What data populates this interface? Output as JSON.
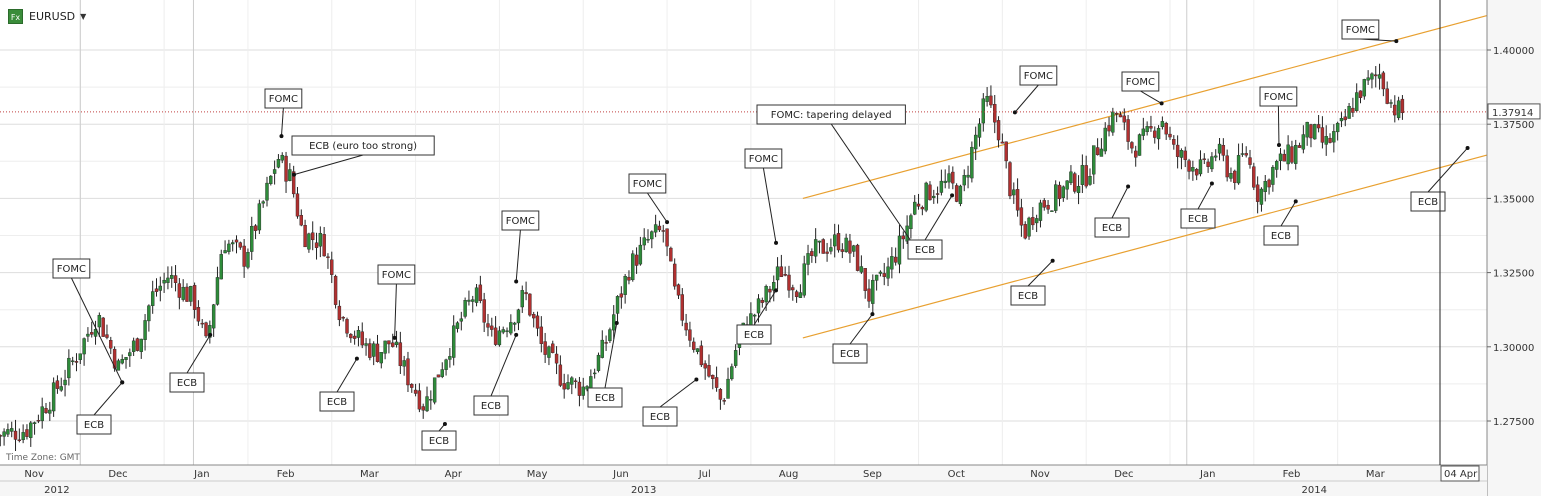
{
  "header": {
    "symbol": "EURUSD",
    "fx_badge": "Fx"
  },
  "timezone": "Time Zone: GMT",
  "current_price": "1.37914",
  "crosshair_date": "04 Apr",
  "colors": {
    "bull": "#2e8b3a",
    "bear": "#b03030",
    "wick": "#222222",
    "channel": "#e8a030",
    "grid": "#dddddd",
    "price_line": "#c04040"
  },
  "chart_data": {
    "type": "candlestick",
    "title": "",
    "xlabel": "",
    "ylabel": "",
    "ylim": [
      1.26,
      1.42
    ],
    "grid": true,
    "y_ticks": [
      "1.27500",
      "1.30000",
      "1.32500",
      "1.35000",
      "1.37500",
      "1.40000"
    ],
    "month_labels": [
      {
        "label": "Nov",
        "t": 0.05
      },
      {
        "label": "Dec",
        "t": 1.05
      },
      {
        "label": "Jan",
        "t": 2.05
      },
      {
        "label": "Feb",
        "t": 3.05
      },
      {
        "label": "Mar",
        "t": 4.05
      },
      {
        "label": "Apr",
        "t": 5.05
      },
      {
        "label": "May",
        "t": 6.05
      },
      {
        "label": "Jun",
        "t": 7.05
      },
      {
        "label": "Jul",
        "t": 8.05
      },
      {
        "label": "Aug",
        "t": 9.05
      },
      {
        "label": "Sep",
        "t": 10.05
      },
      {
        "label": "Oct",
        "t": 11.05
      },
      {
        "label": "Nov",
        "t": 12.05
      },
      {
        "label": "Dec",
        "t": 13.05
      },
      {
        "label": "Jan",
        "t": 14.05
      },
      {
        "label": "Feb",
        "t": 15.05
      },
      {
        "label": "Mar",
        "t": 16.05
      }
    ],
    "year_labels": [
      {
        "label": "2012",
        "t": 0.5
      },
      {
        "label": "2013",
        "t": 7.5
      },
      {
        "label": "2014",
        "t": 15.5
      }
    ],
    "price_path": [
      [
        -0.4,
        1.27
      ],
      [
        0.0,
        1.272
      ],
      [
        0.3,
        1.283
      ],
      [
        0.6,
        1.297
      ],
      [
        0.85,
        1.311
      ],
      [
        1.1,
        1.293
      ],
      [
        1.35,
        1.303
      ],
      [
        1.5,
        1.317
      ],
      [
        1.7,
        1.324
      ],
      [
        1.9,
        1.318
      ],
      [
        2.0,
        1.316
      ],
      [
        2.15,
        1.3
      ],
      [
        2.35,
        1.336
      ],
      [
        2.6,
        1.33
      ],
      [
        2.8,
        1.346
      ],
      [
        3.0,
        1.364
      ],
      [
        3.15,
        1.357
      ],
      [
        3.3,
        1.338
      ],
      [
        3.55,
        1.335
      ],
      [
        3.75,
        1.311
      ],
      [
        4.0,
        1.301
      ],
      [
        4.2,
        1.298
      ],
      [
        4.35,
        1.302
      ],
      [
        4.55,
        1.29
      ],
      [
        4.75,
        1.28
      ],
      [
        5.0,
        1.297
      ],
      [
        5.2,
        1.31
      ],
      [
        5.35,
        1.318
      ],
      [
        5.55,
        1.303
      ],
      [
        5.8,
        1.31
      ],
      [
        5.95,
        1.318
      ],
      [
        6.15,
        1.3
      ],
      [
        6.4,
        1.289
      ],
      [
        6.65,
        1.286
      ],
      [
        6.9,
        1.3
      ],
      [
        7.0,
        1.31
      ],
      [
        7.2,
        1.327
      ],
      [
        7.45,
        1.337
      ],
      [
        7.6,
        1.339
      ],
      [
        7.75,
        1.316
      ],
      [
        7.95,
        1.302
      ],
      [
        8.15,
        1.29
      ],
      [
        8.3,
        1.281
      ],
      [
        8.5,
        1.303
      ],
      [
        8.8,
        1.316
      ],
      [
        9.0,
        1.326
      ],
      [
        9.2,
        1.32
      ],
      [
        9.4,
        1.332
      ],
      [
        9.7,
        1.336
      ],
      [
        9.9,
        1.33
      ],
      [
        10.05,
        1.317
      ],
      [
        10.25,
        1.324
      ],
      [
        10.45,
        1.336
      ],
      [
        10.6,
        1.348
      ],
      [
        10.8,
        1.353
      ],
      [
        11.0,
        1.355
      ],
      [
        11.15,
        1.351
      ],
      [
        11.3,
        1.368
      ],
      [
        11.45,
        1.383
      ],
      [
        11.6,
        1.373
      ],
      [
        11.75,
        1.352
      ],
      [
        11.9,
        1.338
      ],
      [
        12.05,
        1.347
      ],
      [
        12.25,
        1.35
      ],
      [
        12.45,
        1.355
      ],
      [
        12.65,
        1.358
      ],
      [
        12.85,
        1.372
      ],
      [
        13.0,
        1.379
      ],
      [
        13.2,
        1.367
      ],
      [
        13.35,
        1.37
      ],
      [
        13.55,
        1.377
      ],
      [
        13.7,
        1.365
      ],
      [
        13.9,
        1.362
      ],
      [
        14.05,
        1.359
      ],
      [
        14.2,
        1.366
      ],
      [
        14.4,
        1.357
      ],
      [
        14.55,
        1.366
      ],
      [
        14.7,
        1.351
      ],
      [
        14.9,
        1.361
      ],
      [
        15.1,
        1.365
      ],
      [
        15.3,
        1.373
      ],
      [
        15.5,
        1.368
      ],
      [
        15.7,
        1.374
      ],
      [
        15.9,
        1.386
      ],
      [
        16.15,
        1.392
      ],
      [
        16.3,
        1.381
      ],
      [
        16.4,
        1.379
      ]
    ],
    "channel_lines": [
      {
        "from": [
          9.22,
          1.35
        ],
        "to": [
          17.7,
          1.414
        ]
      },
      {
        "from": [
          9.22,
          1.303
        ],
        "to": [
          17.7,
          1.367
        ]
      }
    ],
    "annotations": [
      {
        "label": "FOMC",
        "t": 3.0,
        "price": 1.371,
        "box": [
          265,
          89
        ]
      },
      {
        "label": "ECB (euro too strong)",
        "t": 3.15,
        "price": 1.358,
        "box": [
          292,
          136
        ]
      },
      {
        "label": "FOMC",
        "t": 1.1,
        "price": 1.288,
        "box": [
          53,
          259
        ]
      },
      {
        "label": "ECB",
        "t": 1.1,
        "price": 1.288,
        "box": [
          77,
          415
        ]
      },
      {
        "label": "FOMC",
        "t": 4.35,
        "price": 1.303,
        "box": [
          378,
          265
        ]
      },
      {
        "label": "ECB",
        "t": 2.15,
        "price": 1.304,
        "box": [
          170,
          373
        ]
      },
      {
        "label": "ECB",
        "t": 3.9,
        "price": 1.296,
        "box": [
          320,
          392
        ]
      },
      {
        "label": "ECB",
        "t": 4.95,
        "price": 1.274,
        "box": [
          422,
          431
        ]
      },
      {
        "label": "FOMC",
        "t": 5.8,
        "price": 1.322,
        "box": [
          502,
          211
        ]
      },
      {
        "label": "ECB",
        "t": 5.8,
        "price": 1.304,
        "box": [
          474,
          396
        ]
      },
      {
        "label": "ECB",
        "t": 7.0,
        "price": 1.308,
        "box": [
          588,
          388
        ]
      },
      {
        "label": "FOMC",
        "t": 7.6,
        "price": 1.342,
        "box": [
          629,
          174
        ]
      },
      {
        "label": "ECB",
        "t": 7.95,
        "price": 1.289,
        "box": [
          643,
          407
        ]
      },
      {
        "label": "FOMC",
        "t": 8.9,
        "price": 1.335,
        "box": [
          745,
          149
        ]
      },
      {
        "label": "ECB",
        "t": 8.9,
        "price": 1.319,
        "box": [
          737,
          325
        ]
      },
      {
        "label": "FOMC: tapering delayed",
        "t": 10.55,
        "price": 1.334,
        "box": [
          757,
          105
        ]
      },
      {
        "label": "ECB",
        "t": 10.05,
        "price": 1.311,
        "box": [
          833,
          344
        ]
      },
      {
        "label": "ECB",
        "t": 11.0,
        "price": 1.351,
        "box": [
          908,
          240
        ]
      },
      {
        "label": "FOMC",
        "t": 11.75,
        "price": 1.379,
        "box": [
          1020,
          66
        ]
      },
      {
        "label": "ECB",
        "t": 12.2,
        "price": 1.329,
        "box": [
          1011,
          286
        ]
      },
      {
        "label": "ECB",
        "t": 13.1,
        "price": 1.354,
        "box": [
          1095,
          218
        ]
      },
      {
        "label": "FOMC",
        "t": 13.5,
        "price": 1.382,
        "box": [
          1122,
          72
        ]
      },
      {
        "label": "ECB",
        "t": 14.1,
        "price": 1.355,
        "box": [
          1181,
          209
        ]
      },
      {
        "label": "FOMC",
        "t": 14.9,
        "price": 1.368,
        "box": [
          1260,
          87
        ]
      },
      {
        "label": "ECB",
        "t": 15.1,
        "price": 1.349,
        "box": [
          1264,
          226
        ]
      },
      {
        "label": "FOMC",
        "t": 16.3,
        "price": 1.403,
        "box": [
          1342,
          20
        ]
      },
      {
        "label": "ECB",
        "t": 17.15,
        "price": 1.367,
        "box": [
          1411,
          192
        ]
      }
    ]
  }
}
